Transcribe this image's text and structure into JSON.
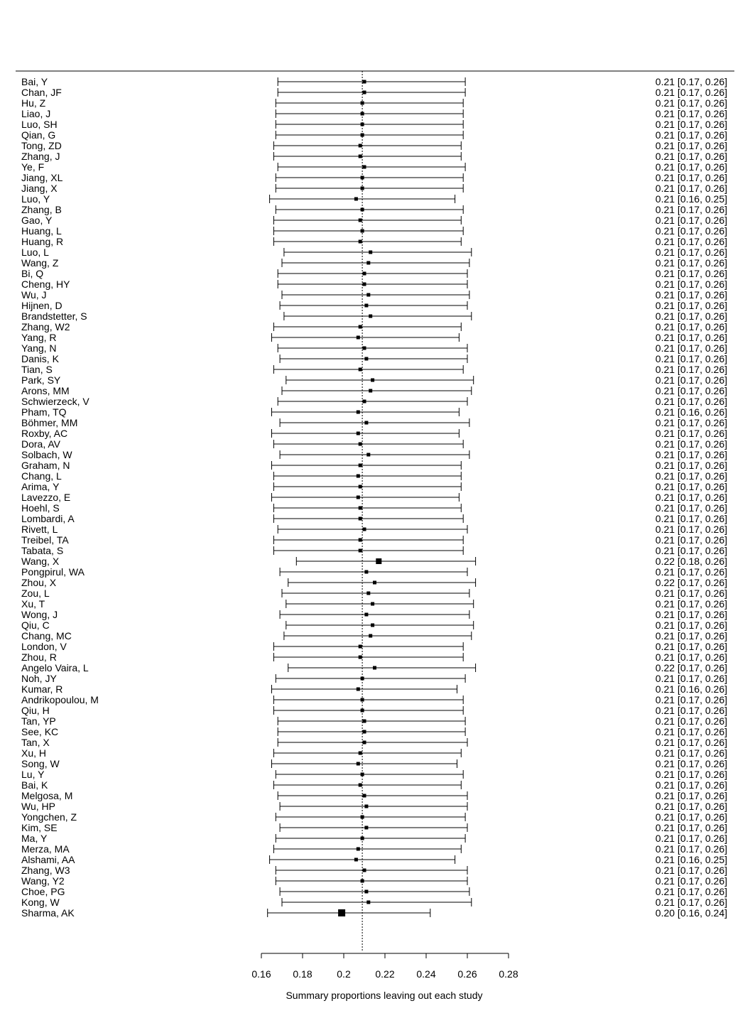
{
  "chart_data": {
    "type": "forest",
    "xlabel": "Summary proportions leaving out each study",
    "xlim": [
      0.16,
      0.28
    ],
    "xticks": [
      0.16,
      0.18,
      0.2,
      0.22,
      0.24,
      0.26,
      0.28
    ],
    "xtick_labels": [
      "0.16",
      "0.18",
      "0.2",
      "0.22",
      "0.24",
      "0.26",
      "0.28"
    ],
    "reference_line": 0.209,
    "studies": [
      {
        "name": "Bai, Y",
        "est": 0.21,
        "lo": 0.168,
        "hi": 0.259,
        "label": "0.21 [0.17, 0.26]"
      },
      {
        "name": "Chan, JF",
        "est": 0.21,
        "lo": 0.168,
        "hi": 0.259,
        "label": "0.21 [0.17, 0.26]"
      },
      {
        "name": "Hu, Z",
        "est": 0.209,
        "lo": 0.167,
        "hi": 0.258,
        "label": "0.21 [0.17, 0.26]"
      },
      {
        "name": "Liao, J",
        "est": 0.209,
        "lo": 0.167,
        "hi": 0.258,
        "label": "0.21 [0.17, 0.26]"
      },
      {
        "name": "Luo, SH",
        "est": 0.209,
        "lo": 0.167,
        "hi": 0.258,
        "label": "0.21 [0.17, 0.26]"
      },
      {
        "name": "Qian, G",
        "est": 0.209,
        "lo": 0.167,
        "hi": 0.258,
        "label": "0.21 [0.17, 0.26]"
      },
      {
        "name": "Tong, ZD",
        "est": 0.208,
        "lo": 0.166,
        "hi": 0.257,
        "label": "0.21 [0.17, 0.26]"
      },
      {
        "name": "Zhang, J",
        "est": 0.208,
        "lo": 0.166,
        "hi": 0.257,
        "label": "0.21 [0.17, 0.26]"
      },
      {
        "name": "Ye, F",
        "est": 0.21,
        "lo": 0.168,
        "hi": 0.259,
        "label": "0.21 [0.17, 0.26]"
      },
      {
        "name": "Jiang, XL",
        "est": 0.209,
        "lo": 0.167,
        "hi": 0.258,
        "label": "0.21 [0.17, 0.26]"
      },
      {
        "name": "Jiang, X",
        "est": 0.209,
        "lo": 0.167,
        "hi": 0.258,
        "label": "0.21 [0.17, 0.26]"
      },
      {
        "name": "Luo, Y",
        "est": 0.206,
        "lo": 0.164,
        "hi": 0.254,
        "label": "0.21 [0.16, 0.25]"
      },
      {
        "name": "Zhang, B",
        "est": 0.209,
        "lo": 0.167,
        "hi": 0.258,
        "label": "0.21 [0.17, 0.26]"
      },
      {
        "name": "Gao, Y",
        "est": 0.208,
        "lo": 0.166,
        "hi": 0.257,
        "label": "0.21 [0.17, 0.26]"
      },
      {
        "name": "Huang, L",
        "est": 0.209,
        "lo": 0.166,
        "hi": 0.258,
        "label": "0.21 [0.17, 0.26]"
      },
      {
        "name": "Huang, R",
        "est": 0.208,
        "lo": 0.166,
        "hi": 0.257,
        "label": "0.21 [0.17, 0.26]"
      },
      {
        "name": "Luo, L",
        "est": 0.213,
        "lo": 0.171,
        "hi": 0.262,
        "label": "0.21 [0.17, 0.26]"
      },
      {
        "name": "Wang, Z",
        "est": 0.212,
        "lo": 0.17,
        "hi": 0.261,
        "label": "0.21 [0.17, 0.26]"
      },
      {
        "name": "Bi, Q",
        "est": 0.21,
        "lo": 0.168,
        "hi": 0.26,
        "label": "0.21 [0.17, 0.26]"
      },
      {
        "name": "Cheng, HY",
        "est": 0.21,
        "lo": 0.168,
        "hi": 0.26,
        "label": "0.21 [0.17, 0.26]"
      },
      {
        "name": "Wu, J",
        "est": 0.212,
        "lo": 0.17,
        "hi": 0.261,
        "label": "0.21 [0.17, 0.26]"
      },
      {
        "name": "Hijnen, D",
        "est": 0.211,
        "lo": 0.169,
        "hi": 0.26,
        "label": "0.21 [0.17, 0.26]"
      },
      {
        "name": "Brandstetter, S",
        "est": 0.213,
        "lo": 0.171,
        "hi": 0.262,
        "label": "0.21 [0.17, 0.26]"
      },
      {
        "name": "Zhang, W2",
        "est": 0.208,
        "lo": 0.166,
        "hi": 0.257,
        "label": "0.21 [0.17, 0.26]"
      },
      {
        "name": "Yang, R",
        "est": 0.207,
        "lo": 0.165,
        "hi": 0.256,
        "label": "0.21 [0.17, 0.26]"
      },
      {
        "name": "Yang, N",
        "est": 0.21,
        "lo": 0.168,
        "hi": 0.26,
        "label": "0.21 [0.17, 0.26]"
      },
      {
        "name": "Danis, K",
        "est": 0.211,
        "lo": 0.169,
        "hi": 0.26,
        "label": "0.21 [0.17, 0.26]"
      },
      {
        "name": "Tian, S",
        "est": 0.208,
        "lo": 0.166,
        "hi": 0.258,
        "label": "0.21 [0.17, 0.26]"
      },
      {
        "name": "Park, SY",
        "est": 0.214,
        "lo": 0.172,
        "hi": 0.263,
        "label": "0.21 [0.17, 0.26]"
      },
      {
        "name": "Arons, MM",
        "est": 0.213,
        "lo": 0.17,
        "hi": 0.262,
        "label": "0.21 [0.17, 0.26]"
      },
      {
        "name": "Schwierzeck, V",
        "est": 0.21,
        "lo": 0.168,
        "hi": 0.26,
        "label": "0.21 [0.17, 0.26]"
      },
      {
        "name": "Pham, TQ",
        "est": 0.207,
        "lo": 0.165,
        "hi": 0.256,
        "label": "0.21 [0.16, 0.26]"
      },
      {
        "name": "Böhmer, MM",
        "est": 0.211,
        "lo": 0.169,
        "hi": 0.261,
        "label": "0.21 [0.17, 0.26]"
      },
      {
        "name": "Roxby, AC",
        "est": 0.207,
        "lo": 0.165,
        "hi": 0.256,
        "label": "0.21 [0.17, 0.26]"
      },
      {
        "name": "Dora, AV",
        "est": 0.208,
        "lo": 0.166,
        "hi": 0.258,
        "label": "0.21 [0.17, 0.26]"
      },
      {
        "name": "Solbach, W",
        "est": 0.212,
        "lo": 0.169,
        "hi": 0.261,
        "label": "0.21 [0.17, 0.26]"
      },
      {
        "name": "Graham, N",
        "est": 0.208,
        "lo": 0.165,
        "hi": 0.257,
        "label": "0.21 [0.17, 0.26]"
      },
      {
        "name": "Chang, L",
        "est": 0.207,
        "lo": 0.166,
        "hi": 0.257,
        "label": "0.21 [0.17, 0.26]"
      },
      {
        "name": "Arima, Y",
        "est": 0.208,
        "lo": 0.166,
        "hi": 0.257,
        "label": "0.21 [0.17, 0.26]"
      },
      {
        "name": "Lavezzo, E",
        "est": 0.207,
        "lo": 0.165,
        "hi": 0.256,
        "label": "0.21 [0.17, 0.26]"
      },
      {
        "name": "Hoehl, S",
        "est": 0.208,
        "lo": 0.166,
        "hi": 0.257,
        "label": "0.21 [0.17, 0.26]"
      },
      {
        "name": "Lombardi, A",
        "est": 0.208,
        "lo": 0.166,
        "hi": 0.258,
        "label": "0.21 [0.17, 0.26]"
      },
      {
        "name": "Rivett, L",
        "est": 0.21,
        "lo": 0.168,
        "hi": 0.26,
        "label": "0.21 [0.17, 0.26]"
      },
      {
        "name": "Treibel, TA",
        "est": 0.208,
        "lo": 0.166,
        "hi": 0.258,
        "label": "0.21 [0.17, 0.26]"
      },
      {
        "name": "Tabata, S",
        "est": 0.208,
        "lo": 0.166,
        "hi": 0.258,
        "label": "0.21 [0.17, 0.26]"
      },
      {
        "name": "Wang, X",
        "est": 0.217,
        "lo": 0.177,
        "hi": 0.264,
        "label": "0.22 [0.18, 0.26]"
      },
      {
        "name": "Pongpirul, WA",
        "est": 0.211,
        "lo": 0.169,
        "hi": 0.26,
        "label": "0.21 [0.17, 0.26]"
      },
      {
        "name": "Zhou, X",
        "est": 0.215,
        "lo": 0.173,
        "hi": 0.264,
        "label": "0.22 [0.17, 0.26]"
      },
      {
        "name": "Zou, L",
        "est": 0.212,
        "lo": 0.17,
        "hi": 0.261,
        "label": "0.21 [0.17, 0.26]"
      },
      {
        "name": "Xu, T",
        "est": 0.214,
        "lo": 0.172,
        "hi": 0.263,
        "label": "0.21 [0.17, 0.26]"
      },
      {
        "name": "Wong, J",
        "est": 0.211,
        "lo": 0.169,
        "hi": 0.261,
        "label": "0.21 [0.17, 0.26]"
      },
      {
        "name": "Qiu, C",
        "est": 0.214,
        "lo": 0.172,
        "hi": 0.263,
        "label": "0.21 [0.17, 0.26]"
      },
      {
        "name": "Chang, MC",
        "est": 0.213,
        "lo": 0.171,
        "hi": 0.262,
        "label": "0.21 [0.17, 0.26]"
      },
      {
        "name": "London, V",
        "est": 0.208,
        "lo": 0.166,
        "hi": 0.258,
        "label": "0.21 [0.17, 0.26]"
      },
      {
        "name": "Zhou, R",
        "est": 0.208,
        "lo": 0.166,
        "hi": 0.258,
        "label": "0.21 [0.17, 0.26]"
      },
      {
        "name": "Angelo Vaira, L",
        "est": 0.215,
        "lo": 0.173,
        "hi": 0.264,
        "label": "0.22 [0.17, 0.26]"
      },
      {
        "name": "Noh, JY",
        "est": 0.209,
        "lo": 0.167,
        "hi": 0.259,
        "label": "0.21 [0.17, 0.26]"
      },
      {
        "name": "Kumar, R",
        "est": 0.207,
        "lo": 0.165,
        "hi": 0.255,
        "label": "0.21 [0.16, 0.26]"
      },
      {
        "name": "Andrikopoulou, M",
        "est": 0.209,
        "lo": 0.166,
        "hi": 0.258,
        "label": "0.21 [0.17, 0.26]"
      },
      {
        "name": "Qiu, H",
        "est": 0.209,
        "lo": 0.166,
        "hi": 0.258,
        "label": "0.21 [0.17, 0.26]"
      },
      {
        "name": "Tan, YP",
        "est": 0.21,
        "lo": 0.168,
        "hi": 0.259,
        "label": "0.21 [0.17, 0.26]"
      },
      {
        "name": "See, KC",
        "est": 0.21,
        "lo": 0.168,
        "hi": 0.259,
        "label": "0.21 [0.17, 0.26]"
      },
      {
        "name": "Tan, X",
        "est": 0.21,
        "lo": 0.168,
        "hi": 0.26,
        "label": "0.21 [0.17, 0.26]"
      },
      {
        "name": "Xu, H",
        "est": 0.208,
        "lo": 0.166,
        "hi": 0.257,
        "label": "0.21 [0.17, 0.26]"
      },
      {
        "name": "Song, W",
        "est": 0.207,
        "lo": 0.165,
        "hi": 0.255,
        "label": "0.21 [0.17, 0.26]"
      },
      {
        "name": "Lu, Y",
        "est": 0.209,
        "lo": 0.167,
        "hi": 0.258,
        "label": "0.21 [0.17, 0.26]"
      },
      {
        "name": "Bai, K",
        "est": 0.208,
        "lo": 0.166,
        "hi": 0.257,
        "label": "0.21 [0.17, 0.26]"
      },
      {
        "name": "Melgosa, M",
        "est": 0.21,
        "lo": 0.168,
        "hi": 0.26,
        "label": "0.21 [0.17, 0.26]"
      },
      {
        "name": "Wu, HP",
        "est": 0.211,
        "lo": 0.169,
        "hi": 0.26,
        "label": "0.21 [0.17, 0.26]"
      },
      {
        "name": "Yongchen, Z",
        "est": 0.209,
        "lo": 0.167,
        "hi": 0.259,
        "label": "0.21 [0.17, 0.26]"
      },
      {
        "name": "Kim, SE",
        "est": 0.211,
        "lo": 0.169,
        "hi": 0.26,
        "label": "0.21 [0.17, 0.26]"
      },
      {
        "name": "Ma, Y",
        "est": 0.209,
        "lo": 0.167,
        "hi": 0.259,
        "label": "0.21 [0.17, 0.26]"
      },
      {
        "name": "Merza, MA",
        "est": 0.207,
        "lo": 0.166,
        "hi": 0.257,
        "label": "0.21 [0.17, 0.26]"
      },
      {
        "name": "Alshami, AA",
        "est": 0.206,
        "lo": 0.164,
        "hi": 0.254,
        "label": "0.21 [0.16, 0.25]"
      },
      {
        "name": "Zhang, W3",
        "est": 0.21,
        "lo": 0.167,
        "hi": 0.26,
        "label": "0.21 [0.17, 0.26]"
      },
      {
        "name": "Wang, Y2",
        "est": 0.209,
        "lo": 0.167,
        "hi": 0.26,
        "label": "0.21 [0.17, 0.26]"
      },
      {
        "name": "Choe, PG",
        "est": 0.211,
        "lo": 0.169,
        "hi": 0.261,
        "label": "0.21 [0.17, 0.26]"
      },
      {
        "name": "Kong, W",
        "est": 0.212,
        "lo": 0.17,
        "hi": 0.262,
        "label": "0.21 [0.17, 0.26]"
      },
      {
        "name": "Sharma, AK",
        "est": 0.199,
        "lo": 0.163,
        "hi": 0.242,
        "label": "0.20 [0.16, 0.24]"
      }
    ]
  }
}
